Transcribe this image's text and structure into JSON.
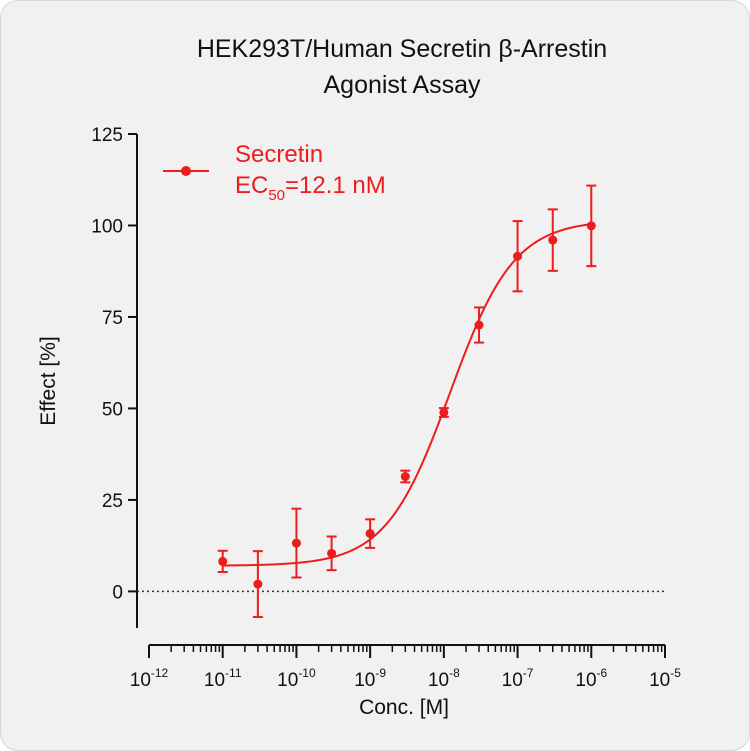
{
  "chart_data": {
    "type": "scatter",
    "title_lines": [
      "HEK293T/Human Secretin β-Arrestin",
      "Agonist Assay"
    ],
    "xlabel": "Conc. [M]",
    "ylabel": "Effect  [%]",
    "x_scale": "log10",
    "xlim": [
      1e-12,
      1e-05
    ],
    "ylim": [
      -10,
      125
    ],
    "x_ticks": [
      {
        "base": "10",
        "exp": "-12",
        "value": 1e-12
      },
      {
        "base": "10",
        "exp": "-11",
        "value": 1e-11
      },
      {
        "base": "10",
        "exp": "-10",
        "value": 1e-10
      },
      {
        "base": "10",
        "exp": "-9",
        "value": 1e-09
      },
      {
        "base": "10",
        "exp": "-8",
        "value": 1e-08
      },
      {
        "base": "10",
        "exp": "-7",
        "value": 1e-07
      },
      {
        "base": "10",
        "exp": "-6",
        "value": 1e-06
      },
      {
        "base": "10",
        "exp": "-5",
        "value": 1e-05
      }
    ],
    "y_ticks": [
      "0",
      "25",
      "50",
      "75",
      "100",
      "125"
    ],
    "y_tick_values": [
      0,
      25,
      50,
      75,
      100,
      125
    ],
    "zero_line": "dotted",
    "legend_position": "top-left",
    "series": [
      {
        "name": "Secretin",
        "color": "#ee1c1c",
        "ec50_prefix": "EC",
        "ec50_sub": "50",
        "ec50_value": "=12.1 nM",
        "x": [
          1e-11,
          3e-11,
          1e-10,
          3e-10,
          1e-09,
          3e-09,
          1e-08,
          3e-08,
          1e-07,
          3e-07,
          1e-06
        ],
        "y": [
          8.2,
          2.0,
          13.2,
          10.4,
          15.8,
          31.4,
          48.9,
          72.8,
          91.6,
          96.0,
          99.9
        ],
        "error": [
          2.9,
          9.0,
          9.4,
          4.6,
          3.9,
          1.6,
          1.2,
          4.8,
          9.6,
          8.4,
          11.0
        ],
        "fit": {
          "model": "4PL",
          "bottom": 7.0,
          "top": 101.5,
          "ec50": 1.21e-08,
          "hill": 1.0
        }
      }
    ]
  }
}
